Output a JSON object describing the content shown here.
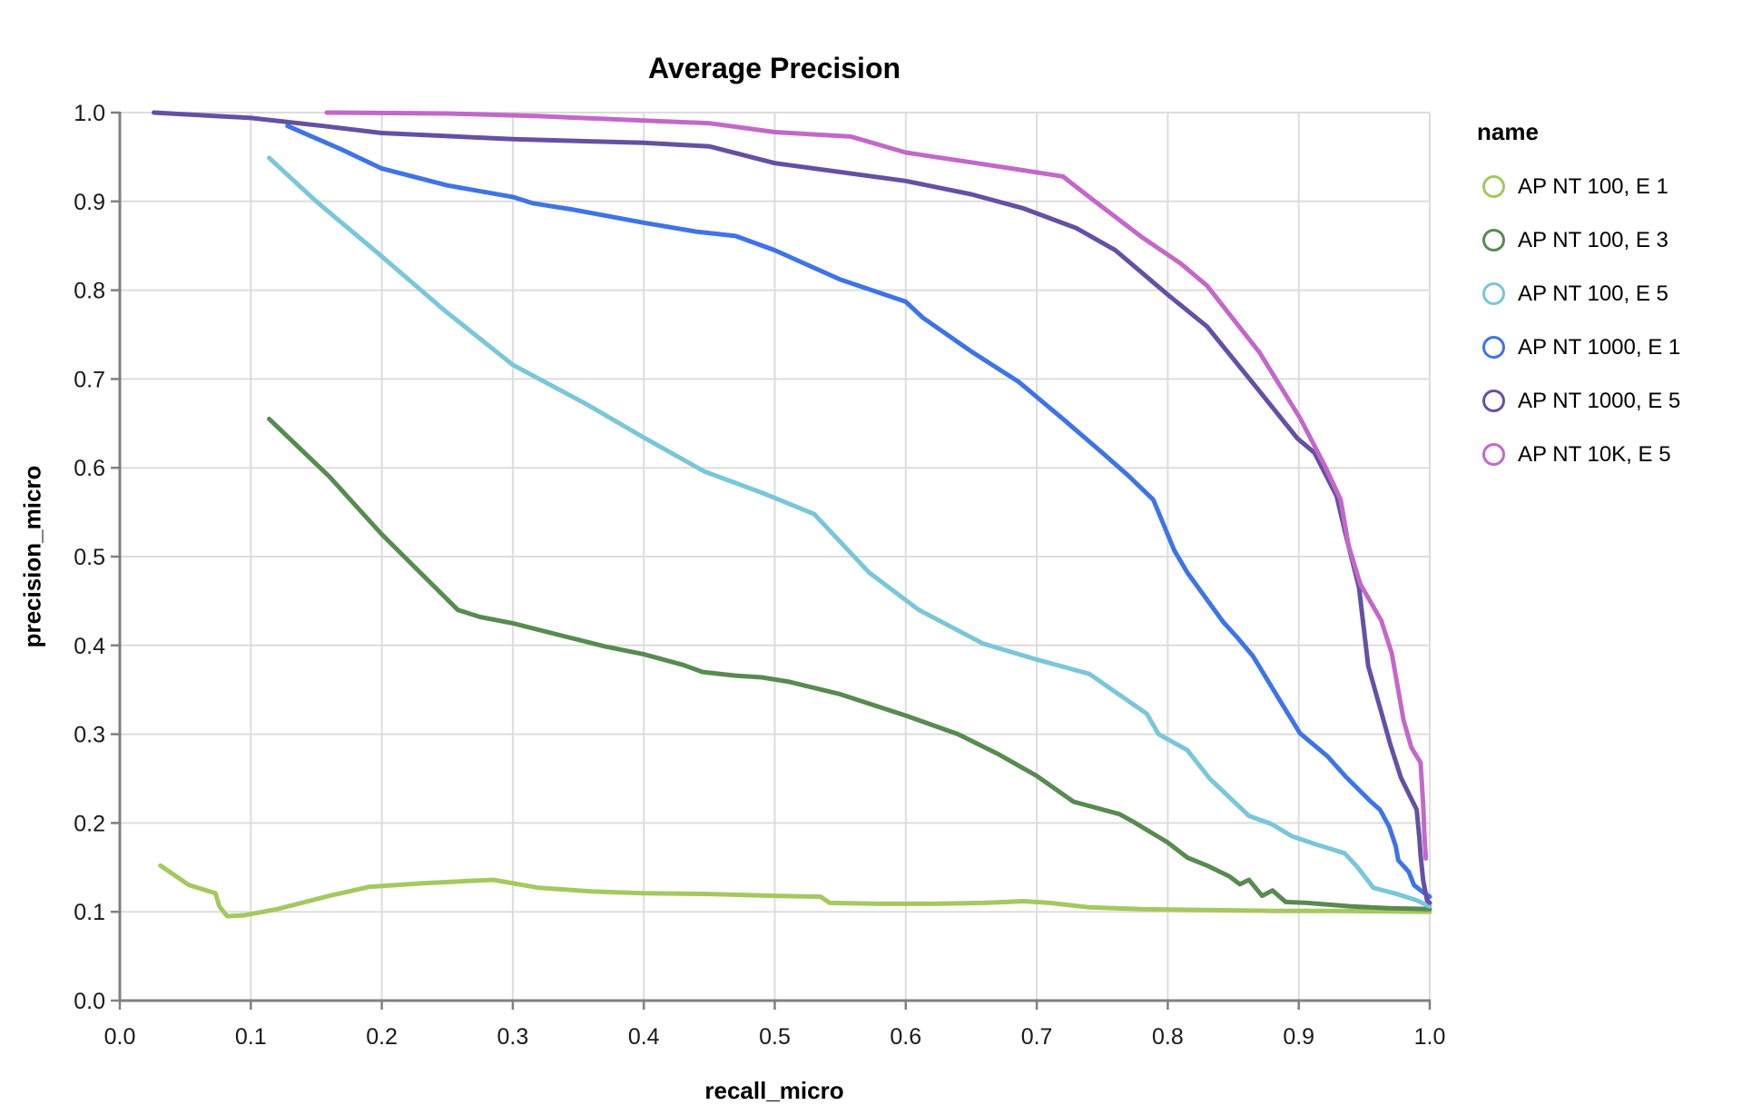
{
  "title": "Average Precision",
  "legend": {
    "title": "name"
  },
  "colors": {
    "grid": "#dddddd",
    "axis": "#808080",
    "tick_label": "#1a1a1a"
  },
  "chart_data": {
    "type": "line",
    "title": "Average Precision",
    "xlabel": "recall_micro",
    "ylabel": "precision_micro",
    "xlim": [
      0.0,
      1.0
    ],
    "ylim": [
      0.0,
      1.0
    ],
    "grid": true,
    "legend_position": "right",
    "legend_title": "name",
    "xtick_labels": [
      "0.0",
      "0.1",
      "0.2",
      "0.3",
      "0.4",
      "0.5",
      "0.6",
      "0.7",
      "0.8",
      "0.9",
      "1.0"
    ],
    "ytick_labels": [
      "0.0",
      "0.1",
      "0.2",
      "0.3",
      "0.4",
      "0.5",
      "0.6",
      "0.7",
      "0.8",
      "0.9",
      "1.0"
    ],
    "series": [
      {
        "name": "AP NT 100, E 1",
        "color": "#a5c85f",
        "points": [
          [
            0.031,
            0.152
          ],
          [
            0.053,
            0.13
          ],
          [
            0.073,
            0.121
          ],
          [
            0.076,
            0.106
          ],
          [
            0.082,
            0.095
          ],
          [
            0.095,
            0.096
          ],
          [
            0.12,
            0.103
          ],
          [
            0.16,
            0.118
          ],
          [
            0.19,
            0.128
          ],
          [
            0.23,
            0.132
          ],
          [
            0.27,
            0.135
          ],
          [
            0.285,
            0.136
          ],
          [
            0.32,
            0.127
          ],
          [
            0.36,
            0.123
          ],
          [
            0.4,
            0.121
          ],
          [
            0.45,
            0.12
          ],
          [
            0.5,
            0.118
          ],
          [
            0.535,
            0.117
          ],
          [
            0.542,
            0.11
          ],
          [
            0.58,
            0.109
          ],
          [
            0.62,
            0.109
          ],
          [
            0.66,
            0.11
          ],
          [
            0.69,
            0.112
          ],
          [
            0.71,
            0.11
          ],
          [
            0.74,
            0.105
          ],
          [
            0.78,
            0.103
          ],
          [
            0.83,
            0.102
          ],
          [
            0.88,
            0.101
          ],
          [
            0.93,
            0.101
          ],
          [
            1.0,
            0.1
          ]
        ]
      },
      {
        "name": "AP NT 100, E 3",
        "color": "#578b50",
        "points": [
          [
            0.114,
            0.655
          ],
          [
            0.16,
            0.59
          ],
          [
            0.2,
            0.525
          ],
          [
            0.258,
            0.44
          ],
          [
            0.275,
            0.432
          ],
          [
            0.3,
            0.425
          ],
          [
            0.34,
            0.41
          ],
          [
            0.37,
            0.399
          ],
          [
            0.4,
            0.39
          ],
          [
            0.43,
            0.378
          ],
          [
            0.445,
            0.37
          ],
          [
            0.47,
            0.366
          ],
          [
            0.49,
            0.364
          ],
          [
            0.511,
            0.359
          ],
          [
            0.55,
            0.345
          ],
          [
            0.6,
            0.321
          ],
          [
            0.64,
            0.3
          ],
          [
            0.67,
            0.278
          ],
          [
            0.7,
            0.253
          ],
          [
            0.728,
            0.224
          ],
          [
            0.763,
            0.21
          ],
          [
            0.773,
            0.202
          ],
          [
            0.8,
            0.178
          ],
          [
            0.815,
            0.161
          ],
          [
            0.83,
            0.152
          ],
          [
            0.847,
            0.14
          ],
          [
            0.855,
            0.131
          ],
          [
            0.862,
            0.136
          ],
          [
            0.872,
            0.118
          ],
          [
            0.88,
            0.124
          ],
          [
            0.89,
            0.111
          ],
          [
            0.906,
            0.11
          ],
          [
            0.94,
            0.106
          ],
          [
            0.97,
            0.104
          ],
          [
            1.0,
            0.103
          ]
        ]
      },
      {
        "name": "AP NT 100, E 5",
        "color": "#79c7d8",
        "points": [
          [
            0.114,
            0.949
          ],
          [
            0.15,
            0.9
          ],
          [
            0.2,
            0.838
          ],
          [
            0.248,
            0.777
          ],
          [
            0.3,
            0.716
          ],
          [
            0.357,
            0.671
          ],
          [
            0.4,
            0.634
          ],
          [
            0.446,
            0.596
          ],
          [
            0.49,
            0.572
          ],
          [
            0.53,
            0.548
          ],
          [
            0.572,
            0.482
          ],
          [
            0.61,
            0.44
          ],
          [
            0.659,
            0.402
          ],
          [
            0.7,
            0.384
          ],
          [
            0.74,
            0.368
          ],
          [
            0.784,
            0.323
          ],
          [
            0.793,
            0.3
          ],
          [
            0.815,
            0.282
          ],
          [
            0.832,
            0.25
          ],
          [
            0.862,
            0.208
          ],
          [
            0.879,
            0.199
          ],
          [
            0.895,
            0.185
          ],
          [
            0.913,
            0.176
          ],
          [
            0.935,
            0.166
          ],
          [
            0.945,
            0.15
          ],
          [
            0.957,
            0.127
          ],
          [
            0.975,
            0.12
          ],
          [
            0.99,
            0.113
          ],
          [
            1.0,
            0.106
          ]
        ]
      },
      {
        "name": "AP NT 1000, E 1",
        "color": "#3e74e6",
        "points": [
          [
            0.128,
            0.985
          ],
          [
            0.17,
            0.958
          ],
          [
            0.2,
            0.937
          ],
          [
            0.25,
            0.918
          ],
          [
            0.3,
            0.905
          ],
          [
            0.315,
            0.898
          ],
          [
            0.345,
            0.891
          ],
          [
            0.4,
            0.876
          ],
          [
            0.44,
            0.866
          ],
          [
            0.47,
            0.861
          ],
          [
            0.5,
            0.845
          ],
          [
            0.55,
            0.812
          ],
          [
            0.6,
            0.787
          ],
          [
            0.613,
            0.769
          ],
          [
            0.65,
            0.731
          ],
          [
            0.686,
            0.697
          ],
          [
            0.72,
            0.655
          ],
          [
            0.75,
            0.617
          ],
          [
            0.77,
            0.591
          ],
          [
            0.789,
            0.564
          ],
          [
            0.805,
            0.507
          ],
          [
            0.815,
            0.482
          ],
          [
            0.842,
            0.427
          ],
          [
            0.853,
            0.409
          ],
          [
            0.865,
            0.388
          ],
          [
            0.886,
            0.337
          ],
          [
            0.901,
            0.301
          ],
          [
            0.922,
            0.275
          ],
          [
            0.936,
            0.252
          ],
          [
            0.955,
            0.224
          ],
          [
            0.962,
            0.215
          ],
          [
            0.969,
            0.196
          ],
          [
            0.974,
            0.174
          ],
          [
            0.976,
            0.158
          ],
          [
            0.984,
            0.145
          ],
          [
            0.988,
            0.13
          ],
          [
            0.995,
            0.122
          ],
          [
            1.0,
            0.117
          ]
        ]
      },
      {
        "name": "AP NT 1000, E 5",
        "color": "#6550a4",
        "points": [
          [
            0.026,
            1.0
          ],
          [
            0.1,
            0.994
          ],
          [
            0.155,
            0.985
          ],
          [
            0.2,
            0.977
          ],
          [
            0.3,
            0.97
          ],
          [
            0.4,
            0.966
          ],
          [
            0.45,
            0.962
          ],
          [
            0.5,
            0.943
          ],
          [
            0.55,
            0.933
          ],
          [
            0.6,
            0.923
          ],
          [
            0.65,
            0.908
          ],
          [
            0.69,
            0.892
          ],
          [
            0.73,
            0.87
          ],
          [
            0.76,
            0.845
          ],
          [
            0.8,
            0.795
          ],
          [
            0.83,
            0.759
          ],
          [
            0.868,
            0.69
          ],
          [
            0.899,
            0.633
          ],
          [
            0.912,
            0.617
          ],
          [
            0.929,
            0.568
          ],
          [
            0.936,
            0.524
          ],
          [
            0.946,
            0.465
          ],
          [
            0.953,
            0.377
          ],
          [
            0.962,
            0.33
          ],
          [
            0.97,
            0.288
          ],
          [
            0.978,
            0.251
          ],
          [
            0.985,
            0.23
          ],
          [
            0.99,
            0.215
          ],
          [
            0.992,
            0.184
          ],
          [
            0.993,
            0.164
          ],
          [
            0.995,
            0.135
          ],
          [
            0.998,
            0.113
          ],
          [
            1.0,
            0.11
          ]
        ]
      },
      {
        "name": "AP NT 10K, E 5",
        "color": "#c368c9",
        "points": [
          [
            0.158,
            1.0
          ],
          [
            0.25,
            0.999
          ],
          [
            0.32,
            0.996
          ],
          [
            0.4,
            0.991
          ],
          [
            0.45,
            0.988
          ],
          [
            0.5,
            0.978
          ],
          [
            0.558,
            0.973
          ],
          [
            0.6,
            0.955
          ],
          [
            0.65,
            0.944
          ],
          [
            0.69,
            0.935
          ],
          [
            0.72,
            0.928
          ],
          [
            0.74,
            0.905
          ],
          [
            0.78,
            0.86
          ],
          [
            0.81,
            0.83
          ],
          [
            0.83,
            0.805
          ],
          [
            0.87,
            0.73
          ],
          [
            0.901,
            0.656
          ],
          [
            0.92,
            0.602
          ],
          [
            0.932,
            0.564
          ],
          [
            0.938,
            0.513
          ],
          [
            0.947,
            0.469
          ],
          [
            0.963,
            0.428
          ],
          [
            0.971,
            0.391
          ],
          [
            0.98,
            0.316
          ],
          [
            0.986,
            0.285
          ],
          [
            0.993,
            0.268
          ],
          [
            0.995,
            0.22
          ],
          [
            0.996,
            0.185
          ],
          [
            0.997,
            0.16
          ]
        ]
      }
    ]
  }
}
